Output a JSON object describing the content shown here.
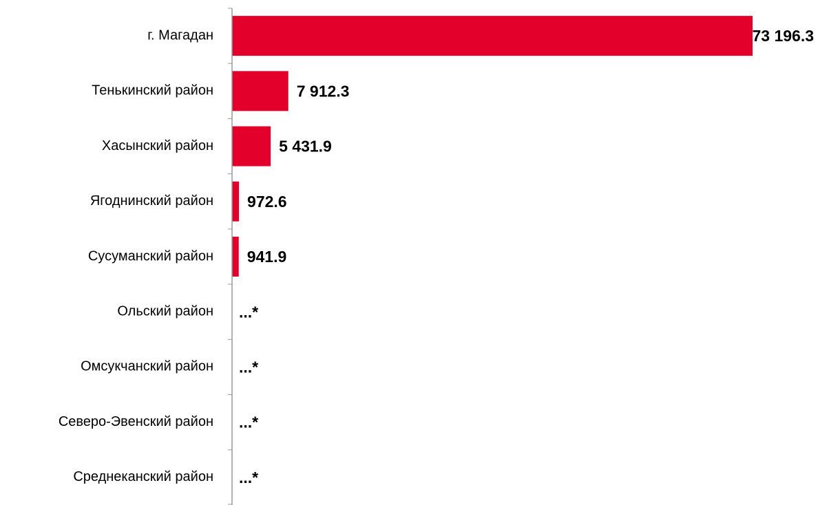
{
  "chart_data": {
    "type": "hbar",
    "categories": [
      "г. Магадан",
      "Тенькинский район",
      "Хасынский район",
      "Ягоднинский район",
      "Сусуманский район",
      "Ольский район",
      "Омсукчанский район",
      "Северо-Эвенский район",
      "Среднеканский район"
    ],
    "values": [
      73196.3,
      7912.3,
      5431.9,
      972.6,
      941.9,
      null,
      null,
      null,
      null
    ],
    "value_labels": [
      "73 196.3",
      "7 912.3",
      "5 431.9",
      "972.6",
      "941.9",
      "...*",
      "...*",
      "...*",
      "...*"
    ],
    "color": "#e3002b"
  }
}
